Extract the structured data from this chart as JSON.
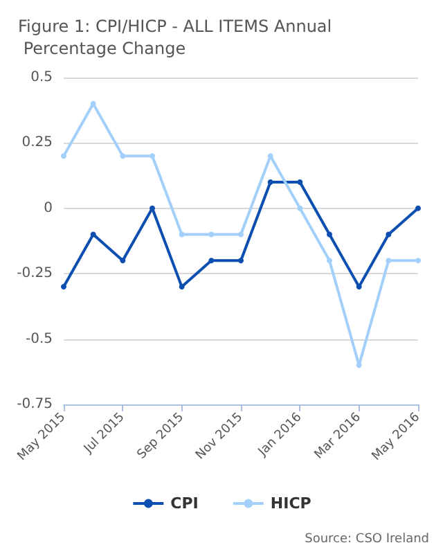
{
  "chart_data": {
    "type": "line",
    "title": "Figure 1: CPI/HICP - ALL ITEMS Annual Percentage Change",
    "categories": [
      "May 2015",
      null,
      "Jul 2015",
      null,
      "Sep 2015",
      null,
      "Nov 2015",
      null,
      "Jan 2016",
      null,
      "Mar 2016",
      null,
      "May 2016"
    ],
    "series": [
      {
        "name": "CPI",
        "color": "#0d4fb0",
        "values": [
          -0.3,
          -0.1,
          -0.2,
          0,
          -0.3,
          -0.2,
          -0.2,
          0.1,
          0.1,
          -0.1,
          -0.3,
          -0.1,
          0
        ]
      },
      {
        "name": "HICP",
        "color": "#a3d0fb",
        "values": [
          0.2,
          0.4,
          0.2,
          0.2,
          -0.1,
          -0.1,
          -0.1,
          0.2,
          0,
          -0.2,
          -0.6,
          -0.2,
          -0.2
        ]
      }
    ],
    "ylim": [
      -0.75,
      0.5
    ],
    "yticks": [
      -0.75,
      -0.5,
      -0.25,
      0,
      0.25,
      0.5
    ],
    "grid": "y",
    "legend": "bottom",
    "marker": "circle",
    "line_style": "solid",
    "annotations": [
      "Source: CSO Ireland"
    ]
  }
}
